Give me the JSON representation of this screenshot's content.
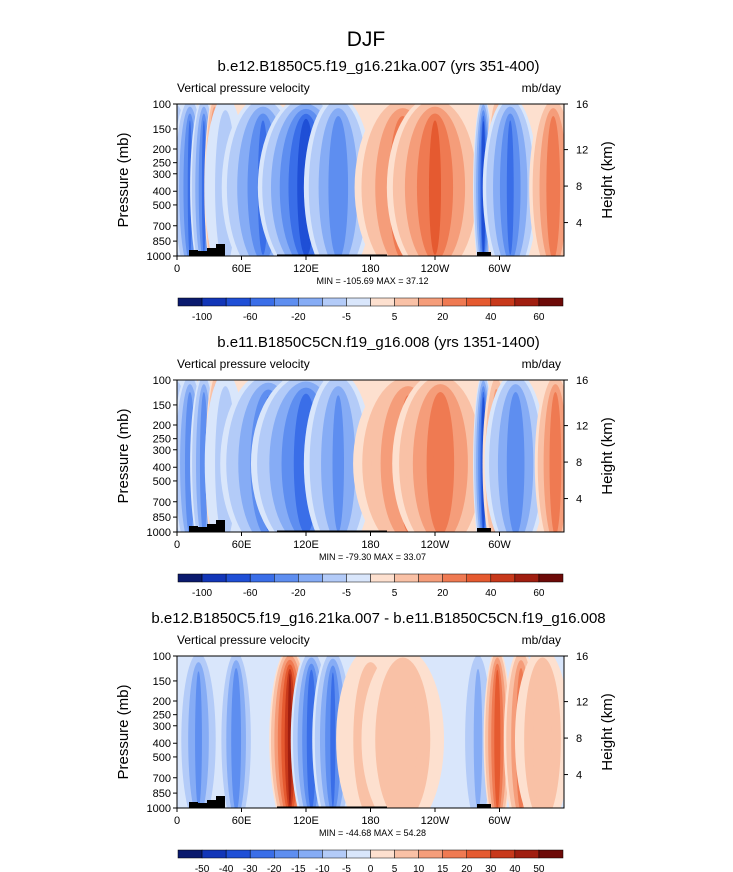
{
  "figure_title": "DJF",
  "chart_data": [
    {
      "type": "heatmap",
      "title": "b.e12.B1850C5.f19_g16.21ka.007 (yrs 351-400)",
      "left_label": "Vertical pressure velocity",
      "right_label": "mb/day",
      "ylabel": "Pressure (mb)",
      "ylabel_right": "Height (km)",
      "x_ticks": [
        "0",
        "60E",
        "120E",
        "180",
        "120W",
        "60W"
      ],
      "y_ticks": [
        "100",
        "150",
        "200",
        "250",
        "300",
        "400",
        "500",
        "700",
        "850",
        "1000"
      ],
      "height_ticks": [
        "16",
        "12",
        "8",
        "4"
      ],
      "stats_text": "MIN = -105.69   MAX =  37.12",
      "colorbar_labels": [
        "-100",
        "-60",
        "-20",
        "-5",
        "5",
        "20",
        "40",
        "60"
      ],
      "colorbar_colors": [
        "#0a1a6e",
        "#1236b8",
        "#1f4fd6",
        "#3a6ee8",
        "#5e8ef0",
        "#86acf5",
        "#b3cbf8",
        "#d9e6fb",
        "#fde0cf",
        "#f9c1a6",
        "#f59d7a",
        "#ef7a52",
        "#e55a30",
        "#c8391b",
        "#a01e10",
        "#6d0a08"
      ],
      "bands": [
        {
          "lon": 0,
          "w": 5,
          "v": -1.5
        },
        {
          "lon": 12,
          "w": 5,
          "v": -4
        },
        {
          "lon": 25,
          "w": 4,
          "v": -4
        },
        {
          "lon": 35,
          "w": 3,
          "v": 4
        },
        {
          "lon": 45,
          "w": 6,
          "v": -1
        },
        {
          "lon": 80,
          "w": 12,
          "v": -4
        },
        {
          "lon": 120,
          "w": 14,
          "v": -5.5
        },
        {
          "lon": 150,
          "w": 10,
          "v": -3.5
        },
        {
          "lon": 210,
          "w": 14,
          "v": 3.5
        },
        {
          "lon": 240,
          "w": 14,
          "v": 4
        },
        {
          "lon": 285,
          "w": 3,
          "v": -5
        },
        {
          "lon": 297,
          "w": 3,
          "v": 2.5
        },
        {
          "lon": 310,
          "w": 8,
          "v": -4
        },
        {
          "lon": 350,
          "w": 7,
          "v": 3.5
        }
      ]
    },
    {
      "type": "heatmap",
      "title": "b.e11.B1850C5CN.f19_g16.008 (yrs 1351-1400)",
      "left_label": "Vertical pressure velocity",
      "right_label": "mb/day",
      "ylabel": "Pressure (mb)",
      "ylabel_right": "Height (km)",
      "x_ticks": [
        "0",
        "60E",
        "120E",
        "180",
        "120W",
        "60W"
      ],
      "y_ticks": [
        "100",
        "150",
        "200",
        "250",
        "300",
        "400",
        "500",
        "700",
        "850",
        "1000"
      ],
      "height_ticks": [
        "16",
        "12",
        "8",
        "4"
      ],
      "stats_text": "MIN = -79.30   MAX =  33.07",
      "colorbar_labels": [
        "-100",
        "-60",
        "-20",
        "-5",
        "5",
        "20",
        "40",
        "60"
      ],
      "colorbar_colors": [
        "#0a1a6e",
        "#1236b8",
        "#1f4fd6",
        "#3a6ee8",
        "#5e8ef0",
        "#86acf5",
        "#b3cbf8",
        "#d9e6fb",
        "#fde0cf",
        "#f9c1a6",
        "#f59d7a",
        "#ef7a52",
        "#e55a30",
        "#c8391b",
        "#a01e10",
        "#6d0a08"
      ],
      "bands": [
        {
          "lon": 0,
          "w": 5,
          "v": -1.5
        },
        {
          "lon": 12,
          "w": 5,
          "v": -3.5
        },
        {
          "lon": 25,
          "w": 4,
          "v": -3.5
        },
        {
          "lon": 36,
          "w": 3,
          "v": 3.5
        },
        {
          "lon": 45,
          "w": 6,
          "v": -1
        },
        {
          "lon": 85,
          "w": 14,
          "v": -4
        },
        {
          "lon": 120,
          "w": 16,
          "v": -4.5
        },
        {
          "lon": 150,
          "w": 10,
          "v": -3
        },
        {
          "lon": 215,
          "w": 16,
          "v": 3
        },
        {
          "lon": 245,
          "w": 14,
          "v": 3.5
        },
        {
          "lon": 285,
          "w": 3,
          "v": -5
        },
        {
          "lon": 297,
          "w": 4,
          "v": 2.5
        },
        {
          "lon": 315,
          "w": 9,
          "v": -3.5
        },
        {
          "lon": 352,
          "w": 6,
          "v": 3.5
        }
      ]
    },
    {
      "type": "heatmap",
      "title": "b.e12.B1850C5.f19_g16.21ka.007 - b.e11.B1850C5CN.f19_g16.008",
      "left_label": "Vertical pressure velocity",
      "right_label": "mb/day",
      "ylabel": "Pressure (mb)",
      "ylabel_right": "Height (km)",
      "x_ticks": [
        "0",
        "60E",
        "120E",
        "180",
        "120W",
        "60W"
      ],
      "y_ticks": [
        "100",
        "150",
        "200",
        "250",
        "300",
        "400",
        "500",
        "700",
        "850",
        "1000"
      ],
      "height_ticks": [
        "16",
        "12",
        "8",
        "4"
      ],
      "stats_text": "MIN = -44.68   MAX =  54.28",
      "colorbar_labels": [
        "-50",
        "-40",
        "-30",
        "-20",
        "-15",
        "-10",
        "-5",
        "0",
        "5",
        "10",
        "15",
        "20",
        "30",
        "40",
        "50"
      ],
      "colorbar_colors": [
        "#0a1a6e",
        "#1236b8",
        "#1f4fd6",
        "#3a6ee8",
        "#5e8ef0",
        "#86acf5",
        "#b3cbf8",
        "#d9e6fb",
        "#fde0cf",
        "#f9c1a6",
        "#f59d7a",
        "#ef7a52",
        "#e55a30",
        "#c8391b",
        "#a01e10",
        "#6d0a08"
      ],
      "bands": [
        {
          "lon": 20,
          "w": 6,
          "v": -3
        },
        {
          "lon": 55,
          "w": 5,
          "v": -3.5
        },
        {
          "lon": 105,
          "w": 6,
          "v": 6
        },
        {
          "lon": 125,
          "w": 6,
          "v": -4.5
        },
        {
          "lon": 145,
          "w": 6,
          "v": -4
        },
        {
          "lon": 180,
          "w": 10,
          "v": 1
        },
        {
          "lon": 210,
          "w": 12,
          "v": 1.5
        },
        {
          "lon": 280,
          "w": 5,
          "v": -2
        },
        {
          "lon": 298,
          "w": 4,
          "v": 4.5
        },
        {
          "lon": 320,
          "w": 5,
          "v": 3.5
        },
        {
          "lon": 340,
          "w": 8,
          "v": 1.5
        }
      ]
    }
  ]
}
